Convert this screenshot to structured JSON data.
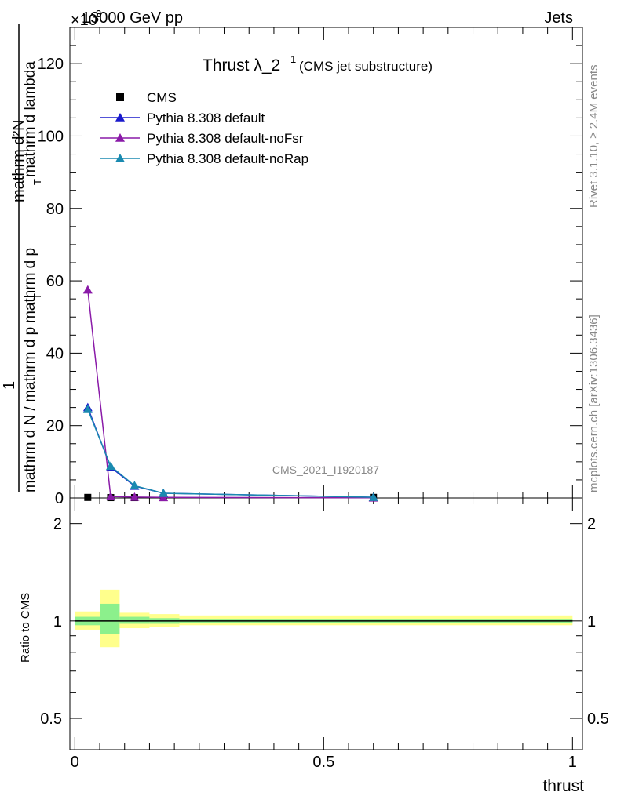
{
  "header": {
    "energy_label": "13000 GeV pp",
    "exponent_label": "×10",
    "process_label": "Jets"
  },
  "side_labels": {
    "rivet": "Rivet 3.1.10, ≥ 2.4M events",
    "mcplots": "mcplots.cern.ch [arXiv:1306.3436]"
  },
  "chart_data": {
    "type": "line",
    "title": "Thrust λ_2",
    "title_superscript": "1",
    "subtitle": "(CMS jet substructure)",
    "watermark": "CMS_2021_I1920187",
    "ylabel_numerator": "mathrm d²N",
    "ylabel_frac_one": "1",
    "ylabel_main": "mathrm d N / mathrm d p",
    "ylabel_mid": "mathrm d p",
    "ylabel_tail": "mathrm d lambda",
    "ylabel_sub": "T",
    "ylim": [
      0,
      130
    ],
    "y_ticks": [
      "0",
      "20",
      "40",
      "60",
      "80",
      "100",
      "120"
    ],
    "xlim": [
      -0.01,
      1.02
    ],
    "x_ticks": [
      "0",
      "0.5",
      "1"
    ],
    "xlabel": "thrust",
    "legend_position": "top-left",
    "x": [
      0.026,
      0.072,
      0.12,
      0.178,
      0.6
    ],
    "series": [
      {
        "name": "CMS",
        "color": "#000000",
        "marker": "square",
        "values": [
          0.15,
          0.1,
          0.1,
          0.1,
          0.15
        ]
      },
      {
        "name": "Pythia 8.308 default",
        "color": "#1a1acc",
        "marker": "triangle",
        "values": [
          25,
          8.5,
          3.3,
          1.3,
          0.2
        ]
      },
      {
        "name": "Pythia 8.308 default-noFsr",
        "color": "#8a1aa8",
        "marker": "triangle",
        "values": [
          57.5,
          0.4,
          0.25,
          0.15,
          0.05
        ]
      },
      {
        "name": "Pythia 8.308 default-noRap",
        "color": "#1a8ab0",
        "marker": "triangle",
        "values": [
          24.5,
          8.8,
          3.4,
          1.3,
          0.2
        ]
      }
    ],
    "ratio": {
      "ylabel": "Ratio to CMS",
      "y_ticks": [
        "0.5",
        "1",
        "2"
      ],
      "ylim": [
        0.4,
        2.4
      ],
      "yellow_band_color": "#ffff8c",
      "green_band_color": "#8cf08c",
      "bins": [
        {
          "x0": 0.0,
          "x1": 0.05,
          "yellow": [
            0.94,
            1.07
          ],
          "green": [
            0.97,
            1.03
          ]
        },
        {
          "x0": 0.05,
          "x1": 0.09,
          "yellow": [
            0.83,
            1.25
          ],
          "green": [
            0.91,
            1.13
          ]
        },
        {
          "x0": 0.09,
          "x1": 0.15,
          "yellow": [
            0.95,
            1.06
          ],
          "green": [
            0.98,
            1.03
          ]
        },
        {
          "x0": 0.15,
          "x1": 0.21,
          "yellow": [
            0.96,
            1.05
          ],
          "green": [
            0.98,
            1.02
          ]
        },
        {
          "x0": 0.21,
          "x1": 1.0,
          "yellow": [
            0.97,
            1.04
          ],
          "green": [
            0.985,
            1.015
          ]
        }
      ]
    }
  }
}
